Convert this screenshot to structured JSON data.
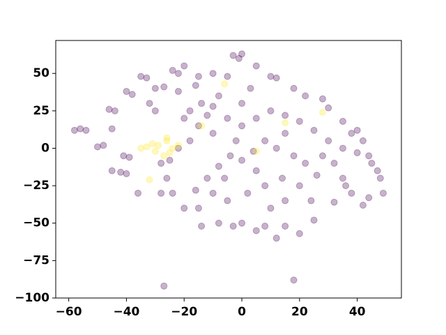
{
  "chart_data": {
    "type": "scatter",
    "xlim": [
      -64.5,
      55.3
    ],
    "ylim": [
      -100,
      72
    ],
    "xticks": [
      {
        "value": -60,
        "label": "−60"
      },
      {
        "value": -40,
        "label": "−40"
      },
      {
        "value": -20,
        "label": "−20"
      },
      0,
      20,
      40
    ],
    "yticks": [
      {
        "value": -100,
        "label": "−100"
      },
      {
        "value": -75,
        "label": "−75"
      },
      {
        "value": -50,
        "label": "−50"
      },
      {
        "value": -25,
        "label": "−25"
      },
      0,
      25,
      50
    ],
    "grid": false,
    "series": [
      {
        "color": "#440154",
        "x": [
          -58,
          -56,
          -54,
          -50,
          -48,
          -45,
          -46,
          -44,
          -40,
          -38,
          -42,
          -40,
          -41,
          -39,
          -35,
          -33,
          -36,
          -30,
          -32,
          -30,
          -27,
          -24,
          -22,
          -20,
          -15,
          -10,
          -5,
          -3,
          0,
          -1,
          5,
          10,
          12,
          18,
          22,
          28,
          30,
          35,
          38,
          40,
          42,
          44,
          45,
          47,
          48,
          49,
          44,
          42,
          38,
          35,
          32,
          25,
          20,
          15,
          12,
          8,
          5,
          0,
          -3,
          -8,
          -14,
          -20,
          -24,
          -26,
          -28,
          -25,
          -22,
          -18,
          -15,
          -12,
          -10,
          -14,
          -18,
          -8,
          -5,
          0,
          5,
          10,
          15,
          20,
          25,
          30,
          28,
          22,
          18,
          12,
          8,
          4,
          0,
          -4,
          -8,
          -12,
          -16,
          -10,
          -5,
          2,
          8,
          14,
          20,
          26,
          32,
          35,
          15,
          -2,
          -6,
          5,
          10,
          -15,
          -28,
          -22,
          -27,
          18,
          -45,
          -20,
          3,
          -16,
          24,
          36,
          40,
          0,
          -10,
          15
        ],
        "y": [
          12,
          13,
          12,
          1,
          2,
          13,
          26,
          25,
          38,
          36,
          -16,
          -17,
          -5,
          -6,
          48,
          47,
          -30,
          25,
          30,
          40,
          41,
          52,
          50,
          55,
          48,
          50,
          48,
          62,
          63,
          60,
          55,
          48,
          47,
          40,
          35,
          33,
          27,
          18,
          10,
          12,
          5,
          -5,
          -10,
          -15,
          -20,
          -30,
          -33,
          -38,
          -30,
          -20,
          -36,
          -48,
          -57,
          -52,
          -60,
          -52,
          -55,
          -50,
          -52,
          -50,
          -52,
          -40,
          -30,
          -20,
          -10,
          -8,
          0,
          5,
          15,
          22,
          28,
          30,
          25,
          35,
          20,
          15,
          20,
          25,
          22,
          18,
          12,
          5,
          -5,
          -10,
          -5,
          0,
          5,
          -2,
          -8,
          -5,
          -12,
          -20,
          -28,
          -30,
          -35,
          -30,
          -25,
          -20,
          -25,
          -18,
          -10,
          0,
          10,
          5,
          -20,
          -15,
          -40,
          -40,
          -30,
          38,
          -92,
          -88,
          -15,
          20,
          40,
          42,
          -35,
          -25,
          -3,
          30,
          10,
          -35
        ]
      },
      {
        "color": "#fde725",
        "x": [
          -33,
          -31,
          -29,
          -35,
          -27,
          -25,
          -24,
          -22,
          -26,
          -30,
          -32,
          -26,
          -14,
          28,
          15,
          -6,
          5
        ],
        "y": [
          1,
          3,
          2,
          0,
          -5,
          -3,
          0,
          2,
          5,
          -2,
          -21,
          7,
          15,
          24,
          17,
          43,
          -2
        ]
      }
    ]
  }
}
